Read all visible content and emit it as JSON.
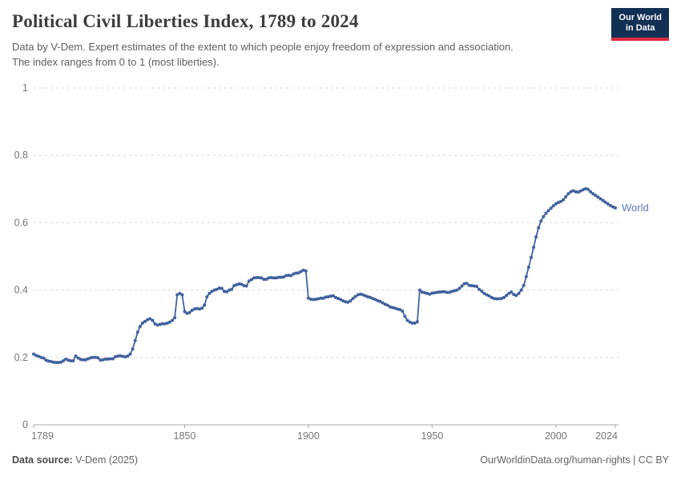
{
  "header": {
    "title": "Political Civil Liberties Index, 1789 to 2024",
    "subtitle_lines": [
      "Data by V-Dem. Expert estimates of the extent to which people enjoy freedom of expression and association.",
      "The index ranges from 0 to 1 (most liberties)."
    ],
    "logo": {
      "line1": "Our World",
      "line2": "in Data"
    }
  },
  "chart_data": {
    "type": "line",
    "title": "Political Civil Liberties Index, 1789 to 2024",
    "xlabel": "",
    "ylabel": "",
    "xlim": [
      1789,
      2024
    ],
    "ylim": [
      0,
      1
    ],
    "x_ticks": [
      1789,
      1850,
      1900,
      1950,
      2000,
      2024
    ],
    "y_ticks": [
      0,
      0.2,
      0.4,
      0.6,
      0.8,
      1
    ],
    "grid": "horizontal-dashed",
    "legend_position": "end-of-line-label",
    "colors": {
      "line": "#41619d",
      "series_label": "#5d7db3",
      "gridline": "#d9d9d9",
      "axis_line": "#a8a8a8",
      "tick_label": "#757575"
    },
    "series": [
      {
        "name": "World",
        "x_start": 1789,
        "x_step": 1,
        "values": [
          0.21,
          0.206,
          0.203,
          0.2,
          0.198,
          0.192,
          0.189,
          0.188,
          0.186,
          0.185,
          0.185,
          0.186,
          0.19,
          0.195,
          0.192,
          0.19,
          0.19,
          0.204,
          0.198,
          0.194,
          0.193,
          0.193,
          0.196,
          0.199,
          0.2,
          0.2,
          0.199,
          0.192,
          0.193,
          0.195,
          0.195,
          0.196,
          0.196,
          0.202,
          0.204,
          0.205,
          0.203,
          0.202,
          0.204,
          0.21,
          0.225,
          0.25,
          0.275,
          0.292,
          0.302,
          0.307,
          0.312,
          0.315,
          0.31,
          0.3,
          0.296,
          0.298,
          0.3,
          0.3,
          0.302,
          0.305,
          0.31,
          0.318,
          0.386,
          0.39,
          0.386,
          0.336,
          0.331,
          0.333,
          0.34,
          0.344,
          0.345,
          0.344,
          0.346,
          0.355,
          0.38,
          0.39,
          0.396,
          0.4,
          0.402,
          0.406,
          0.405,
          0.396,
          0.395,
          0.4,
          0.402,
          0.413,
          0.416,
          0.418,
          0.417,
          0.413,
          0.412,
          0.427,
          0.431,
          0.436,
          0.437,
          0.437,
          0.436,
          0.432,
          0.432,
          0.436,
          0.437,
          0.436,
          0.436,
          0.438,
          0.438,
          0.439,
          0.443,
          0.444,
          0.443,
          0.448,
          0.45,
          0.451,
          0.455,
          0.459,
          0.457,
          0.376,
          0.373,
          0.372,
          0.373,
          0.374,
          0.376,
          0.376,
          0.379,
          0.38,
          0.382,
          0.383,
          0.378,
          0.375,
          0.372,
          0.368,
          0.365,
          0.364,
          0.368,
          0.375,
          0.381,
          0.386,
          0.388,
          0.386,
          0.383,
          0.38,
          0.378,
          0.375,
          0.372,
          0.369,
          0.366,
          0.362,
          0.358,
          0.355,
          0.35,
          0.348,
          0.346,
          0.344,
          0.342,
          0.338,
          0.322,
          0.31,
          0.305,
          0.302,
          0.302,
          0.306,
          0.4,
          0.394,
          0.392,
          0.39,
          0.388,
          0.391,
          0.392,
          0.393,
          0.394,
          0.395,
          0.395,
          0.393,
          0.393,
          0.396,
          0.398,
          0.4,
          0.405,
          0.412,
          0.419,
          0.42,
          0.414,
          0.413,
          0.412,
          0.411,
          0.402,
          0.397,
          0.39,
          0.386,
          0.383,
          0.378,
          0.375,
          0.374,
          0.374,
          0.375,
          0.378,
          0.384,
          0.39,
          0.394,
          0.387,
          0.384,
          0.39,
          0.4,
          0.414,
          0.44,
          0.468,
          0.497,
          0.527,
          0.558,
          0.585,
          0.605,
          0.618,
          0.628,
          0.636,
          0.643,
          0.65,
          0.656,
          0.66,
          0.663,
          0.668,
          0.677,
          0.686,
          0.692,
          0.695,
          0.692,
          0.691,
          0.694,
          0.698,
          0.701,
          0.699,
          0.692,
          0.686,
          0.681,
          0.676,
          0.671,
          0.666,
          0.661,
          0.656,
          0.651,
          0.647,
          0.644
        ]
      }
    ]
  },
  "footer": {
    "source_label": "Data source:",
    "source_value": "V-Dem (2025)",
    "credit": "OurWorldinData.org/human-rights | CC BY"
  }
}
